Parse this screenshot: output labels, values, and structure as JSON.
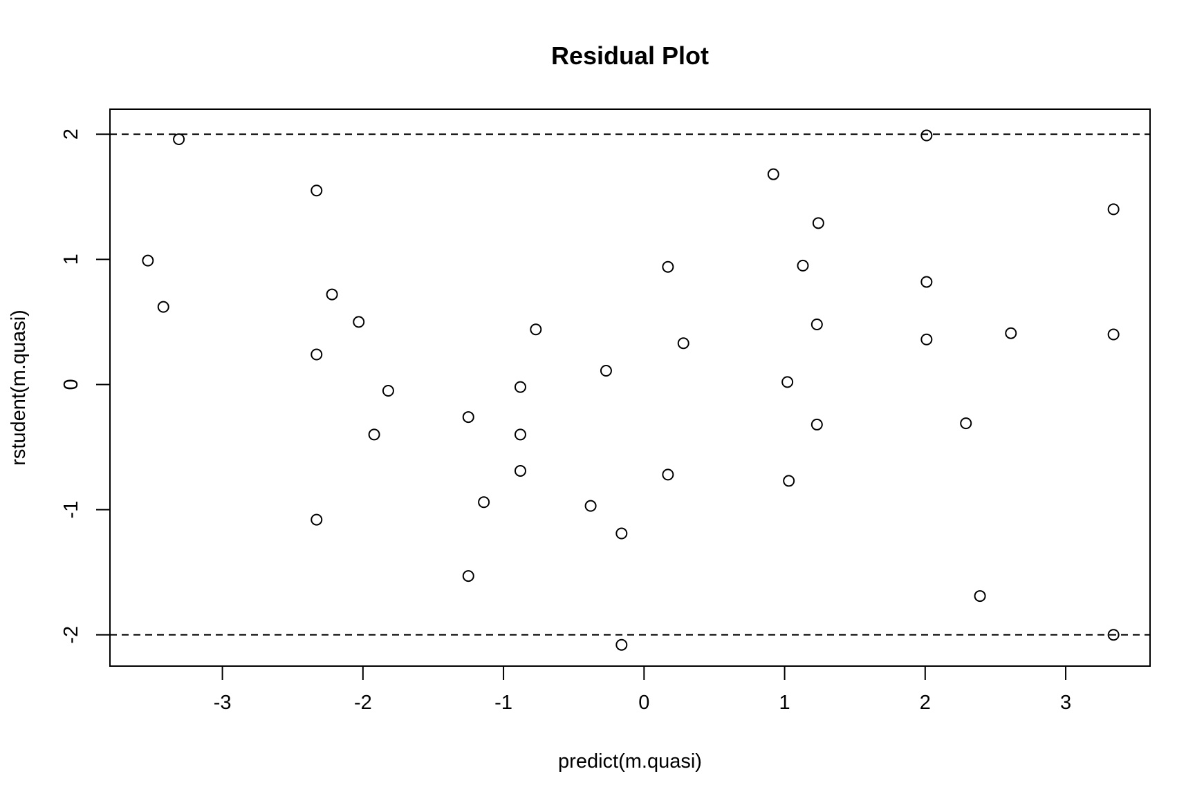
{
  "chart_data": {
    "type": "scatter",
    "title": "Residual Plot",
    "xlabel": "predict(m.quasi)",
    "ylabel": "rstudent(m.quasi)",
    "xlim": [
      -3.8,
      3.6
    ],
    "ylim": [
      -2.25,
      2.2
    ],
    "x_ticks": [
      -3,
      -2,
      -1,
      0,
      1,
      2,
      3
    ],
    "y_ticks": [
      -2,
      -1,
      0,
      1,
      2
    ],
    "x_tick_labels": [
      "-3",
      "-2",
      "-1",
      "0",
      "1",
      "2",
      "3"
    ],
    "y_tick_labels": [
      "-2",
      "-1",
      "0",
      "1",
      "2"
    ],
    "reference_lines": [
      2,
      -2
    ],
    "reference_line_style": "dashed",
    "grid": false,
    "marker": "open-circle",
    "points": [
      {
        "x": -3.53,
        "y": 0.99
      },
      {
        "x": -3.42,
        "y": 0.62
      },
      {
        "x": -3.31,
        "y": 1.96
      },
      {
        "x": -2.33,
        "y": 1.55
      },
      {
        "x": -2.33,
        "y": 0.24
      },
      {
        "x": -2.33,
        "y": -1.08
      },
      {
        "x": -2.22,
        "y": 0.72
      },
      {
        "x": -2.03,
        "y": 0.5
      },
      {
        "x": -1.92,
        "y": -0.4
      },
      {
        "x": -1.82,
        "y": -0.05
      },
      {
        "x": -1.25,
        "y": -0.26
      },
      {
        "x": -1.25,
        "y": -1.53
      },
      {
        "x": -1.14,
        "y": -0.94
      },
      {
        "x": -0.88,
        "y": -0.02
      },
      {
        "x": -0.88,
        "y": -0.4
      },
      {
        "x": -0.88,
        "y": -0.69
      },
      {
        "x": -0.77,
        "y": 0.44
      },
      {
        "x": -0.38,
        "y": -0.97
      },
      {
        "x": -0.27,
        "y": 0.11
      },
      {
        "x": -0.16,
        "y": -1.19
      },
      {
        "x": -0.16,
        "y": -2.08
      },
      {
        "x": 0.17,
        "y": 0.94
      },
      {
        "x": 0.17,
        "y": -0.72
      },
      {
        "x": 0.28,
        "y": 0.33
      },
      {
        "x": 0.92,
        "y": 1.68
      },
      {
        "x": 1.02,
        "y": 0.02
      },
      {
        "x": 1.03,
        "y": -0.77
      },
      {
        "x": 1.13,
        "y": 0.95
      },
      {
        "x": 1.23,
        "y": 0.48
      },
      {
        "x": 1.23,
        "y": -0.32
      },
      {
        "x": 1.24,
        "y": 1.29
      },
      {
        "x": 2.01,
        "y": 1.99
      },
      {
        "x": 2.01,
        "y": 0.82
      },
      {
        "x": 2.01,
        "y": 0.36
      },
      {
        "x": 2.29,
        "y": -0.31
      },
      {
        "x": 2.39,
        "y": -1.69
      },
      {
        "x": 2.61,
        "y": 0.41
      },
      {
        "x": 3.34,
        "y": 1.4
      },
      {
        "x": 3.34,
        "y": 0.4
      },
      {
        "x": 3.34,
        "y": -2.0
      }
    ]
  }
}
